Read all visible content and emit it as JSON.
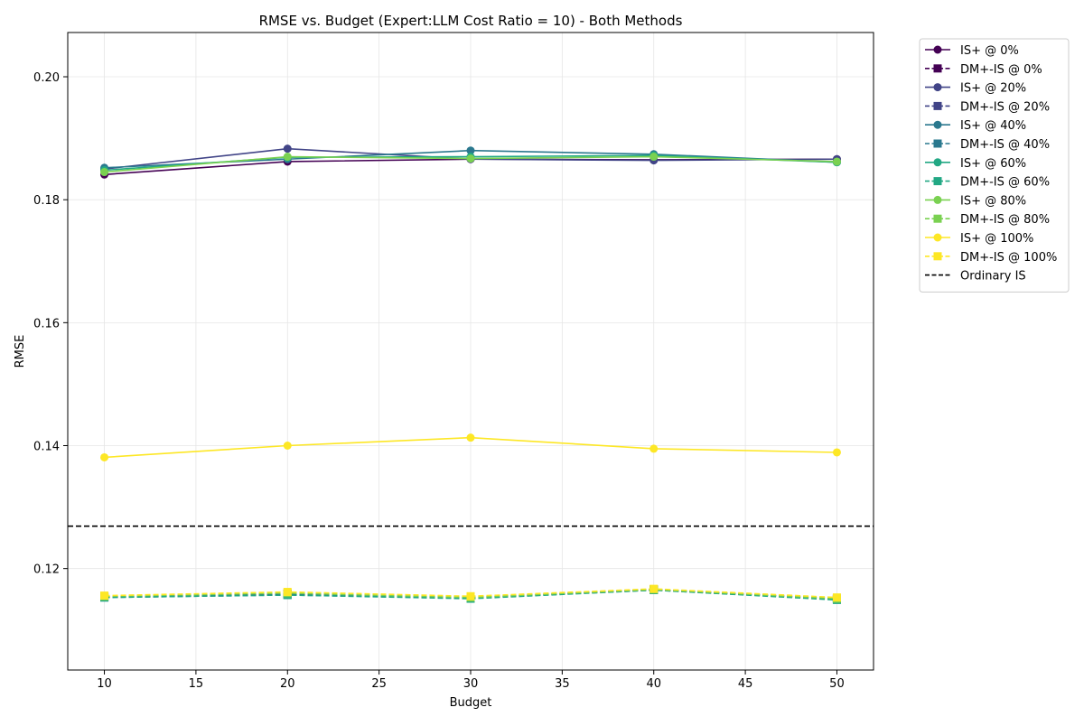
{
  "chart_data": {
    "type": "line",
    "title": "RMSE vs. Budget (Expert:LLM Cost Ratio = 10) - Both Methods",
    "xlabel": "Budget",
    "ylabel": "RMSE",
    "xlim": [
      8,
      52
    ],
    "ylim": [
      0.1035,
      0.2072
    ],
    "x_ticks": [
      10,
      15,
      20,
      25,
      30,
      35,
      40,
      45,
      50
    ],
    "y_ticks": [
      0.12,
      0.14,
      0.16,
      0.18,
      0.2
    ],
    "y_tick_labels": [
      "0.12",
      "0.14",
      "0.16",
      "0.18",
      "0.20"
    ],
    "grid": true,
    "legend_position": "outside-right",
    "x": [
      10,
      20,
      30,
      40,
      50
    ],
    "series": [
      {
        "name": "IS+ @ 0%",
        "color": "#440154",
        "marker": "circle",
        "dash": "solid",
        "values": [
          0.1841,
          0.1862,
          0.1866,
          0.1865,
          0.1866
        ]
      },
      {
        "name": "DM+-IS @ 0%",
        "color": "#440154",
        "marker": "square",
        "dash": "dashed",
        "values": [
          0.1154,
          0.1159,
          0.1153,
          0.1166,
          0.1151
        ]
      },
      {
        "name": "IS+ @ 20%",
        "color": "#414487",
        "marker": "circle",
        "dash": "solid",
        "values": [
          0.185,
          0.1883,
          0.1866,
          0.1864,
          0.1866
        ]
      },
      {
        "name": "DM+-IS @ 20%",
        "color": "#414487",
        "marker": "square",
        "dash": "dashed",
        "values": [
          0.1154,
          0.1158,
          0.1152,
          0.1166,
          0.1151
        ]
      },
      {
        "name": "IS+ @ 40%",
        "color": "#2a788e",
        "marker": "circle",
        "dash": "solid",
        "values": [
          0.1852,
          0.1866,
          0.188,
          0.1874,
          0.1861
        ]
      },
      {
        "name": "DM+-IS @ 40%",
        "color": "#2a788e",
        "marker": "square",
        "dash": "dashed",
        "values": [
          0.1153,
          0.1157,
          0.1152,
          0.1165,
          0.115
        ]
      },
      {
        "name": "IS+ @ 60%",
        "color": "#22a884",
        "marker": "circle",
        "dash": "solid",
        "values": [
          0.1848,
          0.1869,
          0.187,
          0.1872,
          0.1861
        ]
      },
      {
        "name": "DM+-IS @ 60%",
        "color": "#22a884",
        "marker": "square",
        "dash": "dashed",
        "values": [
          0.1153,
          0.1157,
          0.1151,
          0.1165,
          0.1149
        ]
      },
      {
        "name": "IS+ @ 80%",
        "color": "#7ad151",
        "marker": "circle",
        "dash": "solid",
        "values": [
          0.1845,
          0.187,
          0.1867,
          0.187,
          0.1862
        ]
      },
      {
        "name": "DM+-IS @ 80%",
        "color": "#7ad151",
        "marker": "square",
        "dash": "dashed",
        "values": [
          0.1155,
          0.116,
          0.1153,
          0.1166,
          0.1151
        ]
      },
      {
        "name": "IS+ @ 100%",
        "color": "#fde725",
        "marker": "circle",
        "dash": "solid",
        "values": [
          0.1381,
          0.14,
          0.1413,
          0.1395,
          0.1389
        ]
      },
      {
        "name": "DM+-IS @ 100%",
        "color": "#fde725",
        "marker": "square",
        "dash": "dashed",
        "values": [
          0.1156,
          0.1162,
          0.1155,
          0.1167,
          0.1153
        ]
      }
    ],
    "reference_lines": [
      {
        "name": "Ordinary IS",
        "color": "#000000",
        "dash": "dashed",
        "y": 0.1269
      }
    ]
  }
}
